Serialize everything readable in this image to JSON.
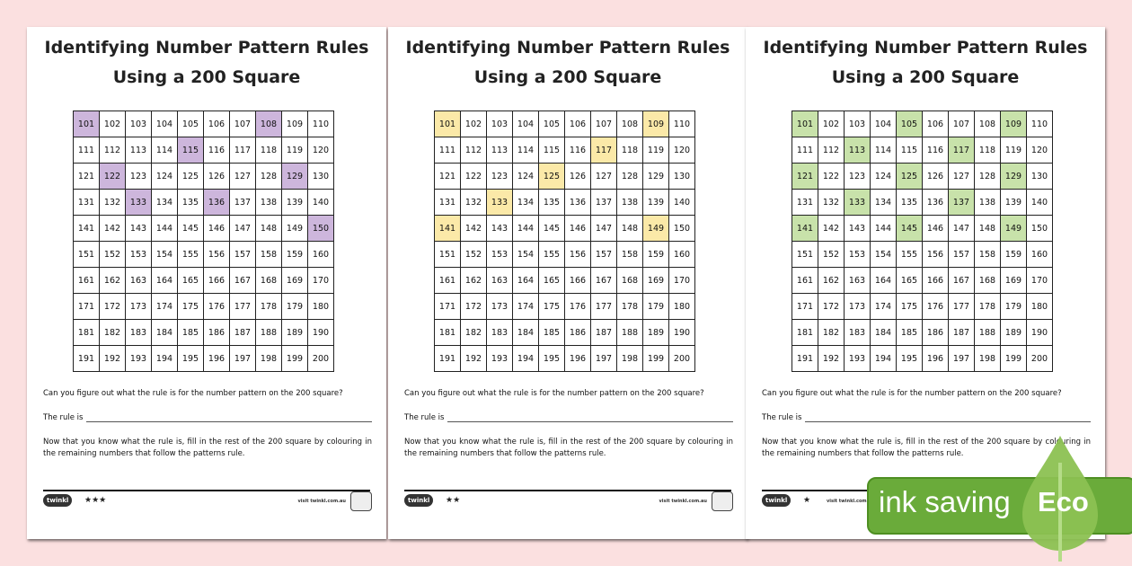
{
  "worksheets": [
    {
      "title_line1": "Identifying Number Pattern Rules",
      "title_line2": "Using a 200 Square",
      "highlight_color": "#cdb6dc",
      "highlighted": [
        101,
        108,
        115,
        122,
        129,
        133,
        136,
        150
      ],
      "question": "Can you figure out what the rule is for the number pattern on the 200 square?",
      "rule_label": "The rule is",
      "instructions": "Now that you know what the rule is, fill in the rest of the 200 square by colouring in the remaining numbers that follow the patterns rule.",
      "logo": "twinkl",
      "stars": "★★★",
      "visit": "visit twinkl.com.au"
    },
    {
      "title_line1": "Identifying Number Pattern Rules",
      "title_line2": "Using a 200 Square",
      "highlight_color": "#fbe9a8",
      "highlighted": [
        101,
        109,
        117,
        125,
        133,
        141,
        149
      ],
      "question": "Can you figure out what the rule is for the number pattern on the 200 square?",
      "rule_label": "The rule is",
      "instructions": "Now that you know what the rule is, fill in the rest of the 200 square by colouring in the remaining numbers that follow the patterns rule.",
      "logo": "twinkl",
      "stars": "★★",
      "visit": "visit twinkl.com.au"
    },
    {
      "title_line1": "Identifying Number Pattern Rules",
      "title_line2": "Using a 200 Square",
      "highlight_color": "#c8e2aa",
      "highlighted": [
        101,
        105,
        109,
        113,
        117,
        121,
        125,
        129,
        133,
        137,
        141,
        145,
        149
      ],
      "question": "Can you figure out what the rule is for the number pattern on the 200 square?",
      "rule_label": "The rule is",
      "instructions": "Now that you know what the rule is, fill in the rest of the 200 square by colouring in the remaining numbers that follow the patterns rule.",
      "logo": "twinkl",
      "stars": "★",
      "visit": "visit twinkl.com.au"
    }
  ],
  "grid_start": 101,
  "grid_end": 200,
  "eco_badge": {
    "text": "ink saving",
    "word": "Eco",
    "color": "#6aab3a"
  }
}
